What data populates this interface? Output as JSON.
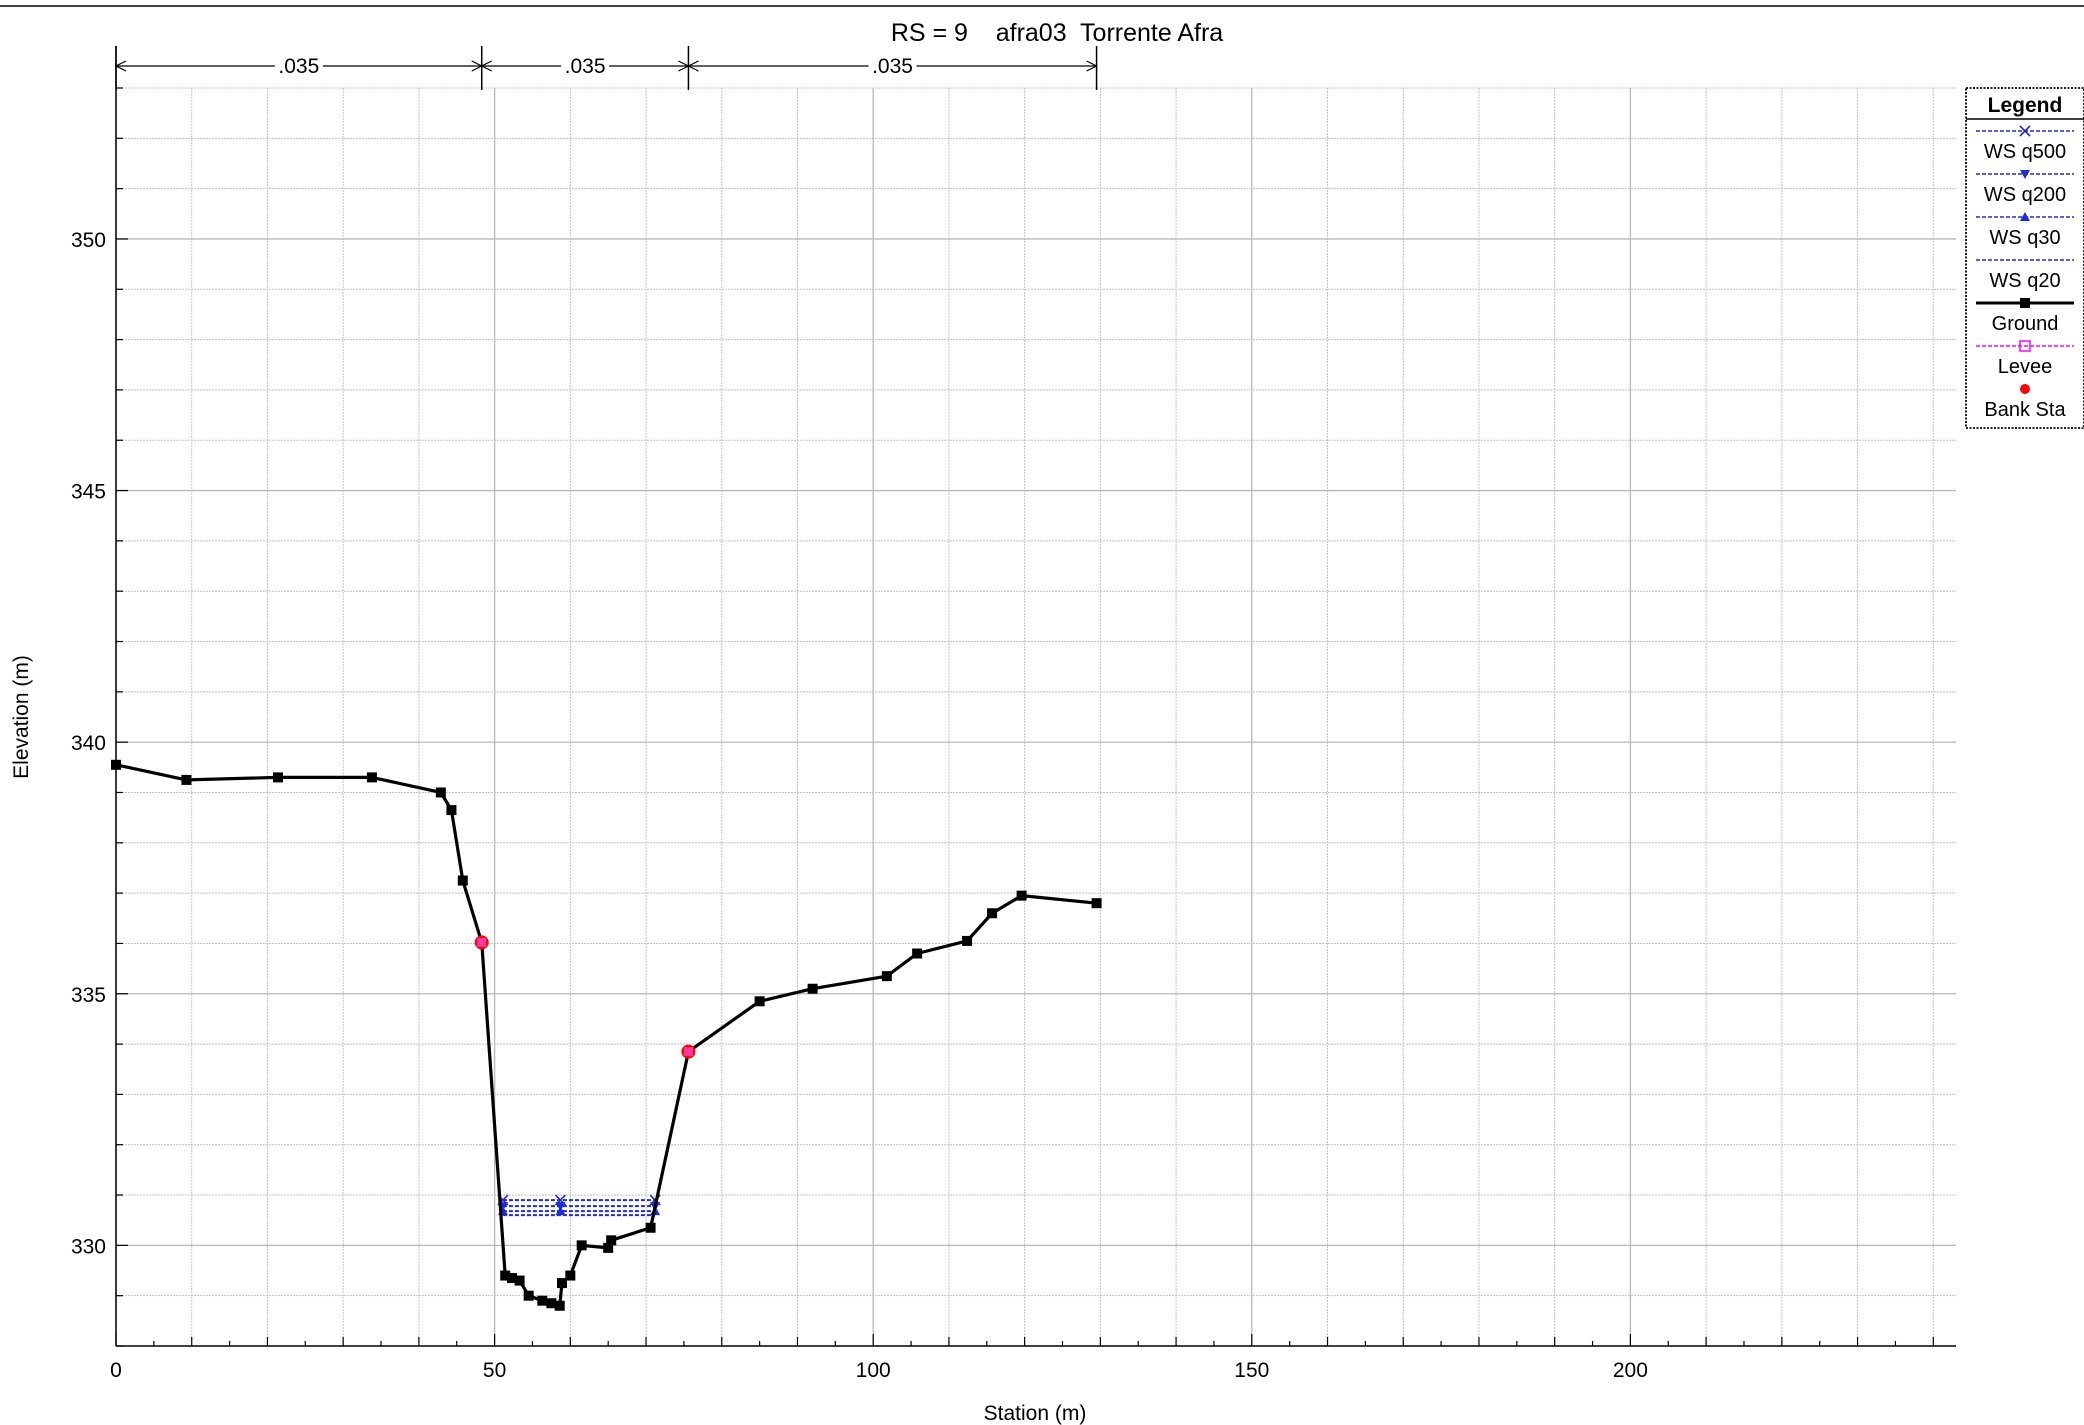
{
  "chart_data": {
    "type": "line",
    "title": "RS = 9    afra03  Torrente Afra",
    "xlabel": "Station (m)",
    "ylabel": "Elevation (m)",
    "xlim": [
      0,
      243
    ],
    "ylim": [
      328,
      353
    ],
    "x_ticks": [
      0,
      50,
      100,
      150,
      200
    ],
    "y_ticks": [
      330,
      335,
      340,
      345,
      350
    ],
    "grid": true,
    "legend_position": "top-right",
    "legend_title": "Legend",
    "colors": {
      "ws": "#1f2bd6",
      "ground": "#000000",
      "levee": "#ff00ff",
      "bank": "#ff0000"
    },
    "mannings_n": {
      "boundaries": [
        0,
        48.3,
        75.6,
        129.5
      ],
      "values": [
        ".035",
        ".035",
        ".035"
      ]
    },
    "ground": {
      "x": [
        0,
        9.3,
        21.4,
        33.8,
        42.9,
        44.3,
        45.8,
        48.3,
        51.4,
        52.3,
        53.3,
        54.5,
        56.3,
        57.5,
        58.6,
        58.9,
        60.0,
        61.5,
        65.0,
        65.4,
        70.6,
        75.6,
        85.0,
        92.0,
        101.8,
        105.8,
        112.4,
        115.7,
        119.6,
        129.5
      ],
      "y": [
        339.55,
        339.25,
        339.3,
        339.3,
        339.0,
        338.65,
        337.25,
        336.02,
        329.4,
        329.35,
        329.3,
        329.0,
        328.9,
        328.85,
        328.8,
        329.25,
        329.4,
        330.0,
        329.95,
        330.1,
        330.35,
        333.85,
        334.85,
        335.1,
        335.35,
        335.8,
        336.05,
        336.6,
        336.95,
        336.8
      ]
    },
    "series": [
      {
        "name": "WS q500",
        "marker": "x",
        "x": [
          51.1,
          58.7,
          71.2
        ],
        "y": [
          330.9,
          330.9,
          330.9
        ]
      },
      {
        "name": "WS q200",
        "marker": "triangle-down",
        "x": [
          51.1,
          58.7,
          71.2
        ],
        "y": [
          330.78,
          330.78,
          330.78
        ]
      },
      {
        "name": "WS q30",
        "marker": "triangle-up",
        "x": [
          51.1,
          58.7,
          71.2
        ],
        "y": [
          330.68,
          330.68,
          330.68
        ]
      },
      {
        "name": "WS q20",
        "marker": "none",
        "x": [
          51.1,
          58.7,
          71.2
        ],
        "y": [
          330.6,
          330.6,
          330.6
        ]
      },
      {
        "name": "Ground",
        "marker": "square-filled"
      },
      {
        "name": "Levee",
        "marker": "square-open"
      },
      {
        "name": "Bank Sta",
        "marker": "circle"
      }
    ],
    "bank_stations": [
      {
        "x": 48.3,
        "y": 336.02
      },
      {
        "x": 75.6,
        "y": 333.85
      }
    ]
  }
}
